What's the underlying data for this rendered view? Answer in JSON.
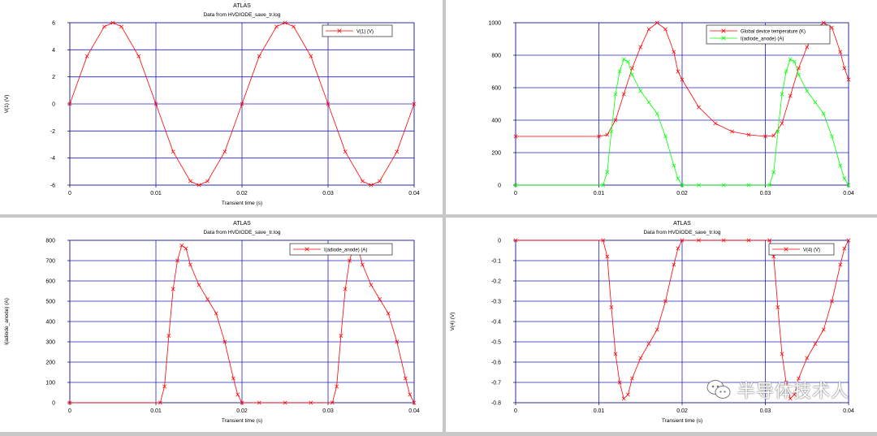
{
  "watermark": {
    "text": "半导体技术人",
    "icon": "wechat-icon"
  },
  "colors": {
    "red": "#ff0000",
    "green": "#00ff00",
    "grid": "#2020c0",
    "axis": "#000000"
  },
  "chart_data": [
    {
      "type": "line",
      "title": "ATLAS",
      "subtitle": "Data from HVDIODE_save_tr.log",
      "xlabel": "Transient time (s)",
      "ylabel": "V(1) (V)",
      "xlim": [
        0,
        0.04
      ],
      "ylim": [
        -6,
        6
      ],
      "xticks": [
        0,
        0.01,
        0.02,
        0.03,
        0.04
      ],
      "xtick_labels": [
        "0",
        "0.01",
        "0.02",
        "0.03",
        "0.04"
      ],
      "yticks": [
        -6,
        -4,
        -2,
        0,
        2,
        4,
        6
      ],
      "ytick_labels": [
        "-6",
        "-4",
        "-2",
        "0",
        "2",
        "4",
        "6"
      ],
      "grid": true,
      "legend": "top-right",
      "series": [
        {
          "name": "V(1) (V)",
          "color": "#ff0000",
          "x": [
            0,
            0.002,
            0.004,
            0.005,
            0.006,
            0.008,
            0.01,
            0.012,
            0.014,
            0.015,
            0.016,
            0.018,
            0.02,
            0.022,
            0.024,
            0.025,
            0.026,
            0.028,
            0.03,
            0.032,
            0.034,
            0.035,
            0.036,
            0.038,
            0.04
          ],
          "y": [
            0,
            3.53,
            5.71,
            6,
            5.71,
            3.53,
            0,
            -3.53,
            -5.71,
            -6,
            -5.71,
            -3.53,
            0,
            3.53,
            5.71,
            6,
            5.71,
            3.53,
            0,
            -3.53,
            -5.71,
            -6,
            -5.71,
            -3.53,
            0
          ]
        }
      ]
    },
    {
      "type": "line",
      "title": "",
      "subtitle": "",
      "xlabel": "",
      "ylabel": "",
      "xlim": [
        0,
        0.04
      ],
      "ylim": [
        0,
        1000
      ],
      "xticks": [
        0,
        0.01,
        0.02,
        0.03,
        0.04
      ],
      "xtick_labels": [
        "0",
        "0.01",
        "0.02",
        "0.03",
        "0.04"
      ],
      "yticks": [
        0,
        200,
        400,
        600,
        800,
        1000
      ],
      "ytick_labels": [
        "0",
        "200",
        "400",
        "600",
        "800",
        "1000"
      ],
      "grid": true,
      "legend": "top-right",
      "series": [
        {
          "name": "Global device temperature (K)",
          "color": "#ff0000",
          "x": [
            0,
            0.01,
            0.011,
            0.012,
            0.013,
            0.014,
            0.015,
            0.016,
            0.017,
            0.018,
            0.019,
            0.0195,
            0.02,
            0.022,
            0.024,
            0.026,
            0.028,
            0.03,
            0.031,
            0.032,
            0.033,
            0.034,
            0.035,
            0.036,
            0.037,
            0.038,
            0.039,
            0.0395,
            0.04
          ],
          "y": [
            300,
            300,
            310,
            400,
            560,
            720,
            850,
            960,
            1000,
            960,
            820,
            700,
            650,
            480,
            380,
            330,
            310,
            300,
            305,
            380,
            550,
            720,
            850,
            960,
            1000,
            970,
            820,
            720,
            650
          ]
        },
        {
          "name": "I(adiode_anode) (A)",
          "color": "#00ff00",
          "x": [
            0,
            0.0105,
            0.011,
            0.0115,
            0.012,
            0.0125,
            0.013,
            0.0135,
            0.014,
            0.015,
            0.016,
            0.017,
            0.018,
            0.019,
            0.0195,
            0.02,
            0.022,
            0.025,
            0.028,
            0.0305,
            0.031,
            0.0315,
            0.032,
            0.0325,
            0.033,
            0.0335,
            0.034,
            0.035,
            0.036,
            0.037,
            0.038,
            0.039,
            0.0395,
            0.04
          ],
          "y": [
            0,
            0,
            80,
            330,
            560,
            700,
            775,
            760,
            680,
            580,
            510,
            440,
            300,
            120,
            40,
            0,
            0,
            0,
            0,
            0,
            80,
            330,
            560,
            700,
            775,
            760,
            680,
            580,
            510,
            440,
            300,
            120,
            40,
            0
          ]
        }
      ]
    },
    {
      "type": "line",
      "title": "ATLAS",
      "subtitle": "Data from HVDIODE_save_tr.log",
      "xlabel": "Transient time (s)",
      "ylabel": "I(adiode_anode) (A)",
      "xlim": [
        0,
        0.04
      ],
      "ylim": [
        0,
        800
      ],
      "xticks": [
        0,
        0.01,
        0.02,
        0.03,
        0.04
      ],
      "xtick_labels": [
        "0",
        "0.01",
        "0.02",
        "0.03",
        "0.04"
      ],
      "yticks": [
        0,
        100,
        200,
        300,
        400,
        500,
        600,
        700,
        800
      ],
      "ytick_labels": [
        "0",
        "100",
        "200",
        "300",
        "400",
        "500",
        "600",
        "700",
        "800"
      ],
      "grid": true,
      "legend": "top-right",
      "series": [
        {
          "name": "I(adiode_anode) (A)",
          "color": "#ff0000",
          "x": [
            0,
            0.0105,
            0.011,
            0.0115,
            0.012,
            0.0125,
            0.013,
            0.0135,
            0.014,
            0.015,
            0.016,
            0.017,
            0.018,
            0.019,
            0.0195,
            0.02,
            0.022,
            0.025,
            0.028,
            0.0305,
            0.031,
            0.0315,
            0.032,
            0.0325,
            0.033,
            0.0335,
            0.034,
            0.035,
            0.036,
            0.037,
            0.038,
            0.039,
            0.0395,
            0.04
          ],
          "y": [
            0,
            0,
            80,
            330,
            560,
            700,
            775,
            760,
            680,
            580,
            510,
            440,
            300,
            120,
            40,
            0,
            0,
            0,
            0,
            0,
            80,
            330,
            560,
            700,
            775,
            760,
            680,
            580,
            510,
            440,
            300,
            120,
            40,
            0
          ]
        }
      ]
    },
    {
      "type": "line",
      "title": "ATLAS",
      "subtitle": "Data from HVDIODE_save_tr.log",
      "xlabel": "Transient time (s)",
      "ylabel": "V(4) (V)",
      "xlim": [
        0,
        0.04
      ],
      "ylim": [
        -0.8,
        0
      ],
      "xticks": [
        0,
        0.01,
        0.02,
        0.03,
        0.04
      ],
      "xtick_labels": [
        "0",
        "0.01",
        "0.02",
        "0.03",
        "0.04"
      ],
      "yticks": [
        -0.8,
        -0.7,
        -0.6,
        -0.5,
        -0.4,
        -0.3,
        -0.2,
        -0.1,
        0
      ],
      "ytick_labels": [
        "-0.8",
        "-0.7",
        "-0.6",
        "-0.5",
        "-0.4",
        "-0.3",
        "-0.2",
        "-0.1",
        "0"
      ],
      "grid": true,
      "legend": "top-right",
      "series": [
        {
          "name": "V(4) (V)",
          "color": "#ff0000",
          "x": [
            0,
            0.0105,
            0.011,
            0.0115,
            0.012,
            0.0125,
            0.013,
            0.0135,
            0.014,
            0.015,
            0.016,
            0.017,
            0.018,
            0.019,
            0.0195,
            0.02,
            0.022,
            0.025,
            0.028,
            0.0305,
            0.031,
            0.0315,
            0.032,
            0.0325,
            0.033,
            0.0335,
            0.034,
            0.035,
            0.036,
            0.037,
            0.038,
            0.039,
            0.0395,
            0.04
          ],
          "y": [
            0,
            0,
            -0.08,
            -0.33,
            -0.56,
            -0.7,
            -0.78,
            -0.76,
            -0.68,
            -0.58,
            -0.51,
            -0.44,
            -0.3,
            -0.12,
            -0.04,
            0,
            0,
            0,
            0,
            0,
            -0.08,
            -0.33,
            -0.56,
            -0.7,
            -0.78,
            -0.76,
            -0.68,
            -0.58,
            -0.51,
            -0.44,
            -0.3,
            -0.12,
            -0.04,
            0
          ]
        }
      ]
    }
  ]
}
